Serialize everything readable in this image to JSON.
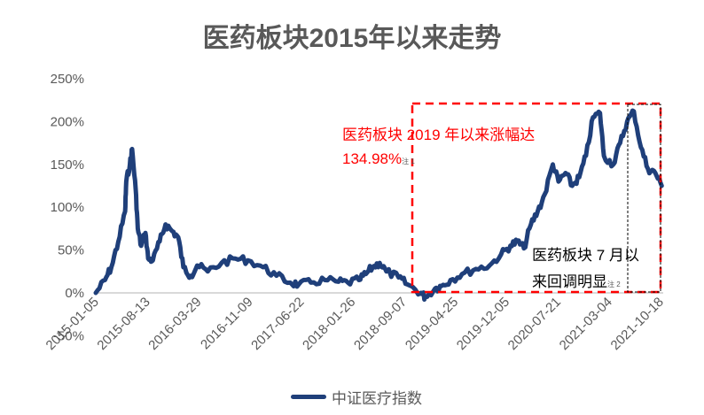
{
  "title": "医药板块2015年以来走势",
  "colors": {
    "line": "#1f3f7a",
    "highlight_box": "#ff0000",
    "subbox": "#000000",
    "axis_text": "#595959",
    "baseline": "#d9d9d9"
  },
  "annotations": {
    "red_line1": "医药板块  2019  年以来涨幅达",
    "red_line2": "134.98%",
    "red_note": "注 1",
    "black_line1": "医药板块 7 月以",
    "black_line2": "来回调明显",
    "black_note": "注 2"
  },
  "legend": {
    "label": "中证医疗指数"
  },
  "chart_data": {
    "type": "line",
    "title": "医药板块2015年以来走势",
    "xlabel": "",
    "ylabel": "",
    "ylim": [
      -50,
      250
    ],
    "yticks": [
      "-50%",
      "0%",
      "50%",
      "100%",
      "150%",
      "200%",
      "250%"
    ],
    "grid": false,
    "legend_position": "bottom",
    "categories": [
      "2015-01-05",
      "2015-08-13",
      "2016-03-29",
      "2016-11-09",
      "2017-06-22",
      "2018-01-26",
      "2018-09-07",
      "2019-04-25",
      "2019-12-05",
      "2020-07-21",
      "2021-03-04",
      "2021-10-18"
    ],
    "series": [
      {
        "name": "中证医疗指数",
        "points": [
          [
            "2015-01-05",
            0
          ],
          [
            "2015-02",
            15
          ],
          [
            "2015-03",
            30
          ],
          [
            "2015-04",
            60
          ],
          [
            "2015-05",
            95
          ],
          [
            "2015-05-20",
            130
          ],
          [
            "2015-06-05",
            150
          ],
          [
            "2015-06-15",
            168
          ],
          [
            "2015-07-01",
            120
          ],
          [
            "2015-07-10",
            75
          ],
          [
            "2015-07-25",
            55
          ],
          [
            "2015-08-13",
            70
          ],
          [
            "2015-08-25",
            40
          ],
          [
            "2015-09-15",
            38
          ],
          [
            "2015-10-15",
            60
          ],
          [
            "2015-11-10",
            80
          ],
          [
            "2015-12-10",
            72
          ],
          [
            "2016-01-05",
            65
          ],
          [
            "2016-01-28",
            30
          ],
          [
            "2016-03-01",
            20
          ],
          [
            "2016-03-29",
            32
          ],
          [
            "2016-05",
            25
          ],
          [
            "2016-07",
            35
          ],
          [
            "2016-09",
            40
          ],
          [
            "2016-11-09",
            38
          ],
          [
            "2017-01",
            30
          ],
          [
            "2017-03",
            20
          ],
          [
            "2017-05",
            12
          ],
          [
            "2017-06-22",
            10
          ],
          [
            "2017-08",
            12
          ],
          [
            "2017-10",
            15
          ],
          [
            "2017-12",
            13
          ],
          [
            "2018-01-26",
            12
          ],
          [
            "2018-03",
            15
          ],
          [
            "2018-04",
            22
          ],
          [
            "2018-05",
            30
          ],
          [
            "2018-06",
            35
          ],
          [
            "2018-07",
            25
          ],
          [
            "2018-09-07",
            18
          ],
          [
            "2018-10",
            10
          ],
          [
            "2018-12",
            0
          ],
          [
            "2019-01-03",
            -5
          ],
          [
            "2019-02",
            5
          ],
          [
            "2019-03",
            8
          ],
          [
            "2019-04-25",
            15
          ],
          [
            "2019-06",
            22
          ],
          [
            "2019-08",
            28
          ],
          [
            "2019-10",
            32
          ],
          [
            "2019-12-05",
            45
          ],
          [
            "2020-01",
            55
          ],
          [
            "2020-02",
            60
          ],
          [
            "2020-03",
            52
          ],
          [
            "2020-04",
            80
          ],
          [
            "2020-05",
            95
          ],
          [
            "2020-06",
            115
          ],
          [
            "2020-07-21",
            150
          ],
          [
            "2020-08",
            130
          ],
          [
            "2020-09",
            140
          ],
          [
            "2020-10",
            125
          ],
          [
            "2020-11",
            135
          ],
          [
            "2020-12",
            160
          ],
          [
            "2021-01",
            205
          ],
          [
            "2021-02",
            210
          ],
          [
            "2021-03-04",
            160
          ],
          [
            "2021-04",
            150
          ],
          [
            "2021-05",
            175
          ],
          [
            "2021-06",
            200
          ],
          [
            "2021-07",
            212
          ],
          [
            "2021-08",
            170
          ],
          [
            "2021-09",
            145
          ],
          [
            "2021-10-18",
            140
          ],
          [
            "2021-11",
            125
          ]
        ]
      }
    ],
    "highlight_regions": [
      {
        "label": "医药板块 2019 年以来涨幅达 134.98%",
        "from": "2019-01",
        "to": "2021-11",
        "style": "red-dashed"
      },
      {
        "label": "医药板块 7 月以来回调明显",
        "from": "2021-07",
        "to": "2021-11",
        "style": "black-dashed"
      }
    ]
  }
}
